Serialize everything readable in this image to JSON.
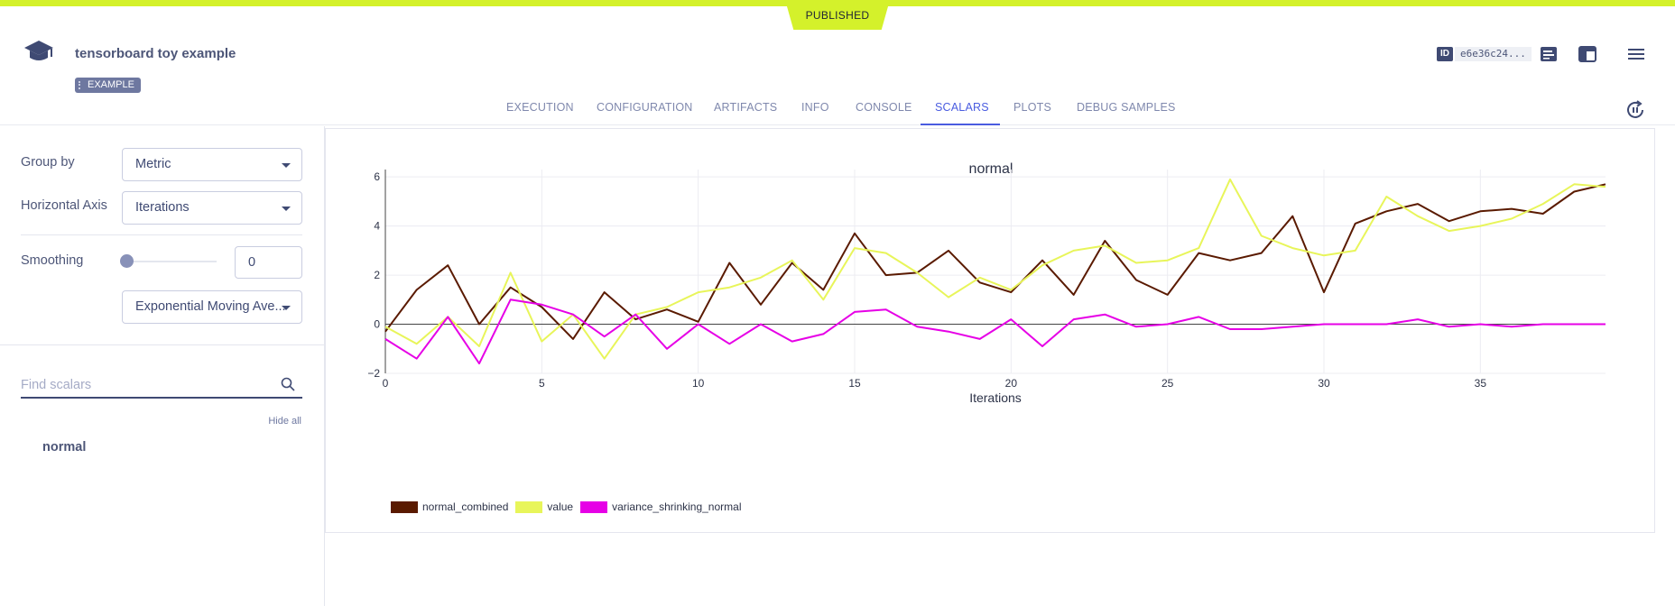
{
  "status_banner": "PUBLISHED",
  "task": {
    "title": "tensorboard toy example",
    "tag": "EXAMPLE",
    "id_label": "ID",
    "id_value": "e6e36c24..."
  },
  "tabs": [
    {
      "label": "EXECUTION",
      "active": false
    },
    {
      "label": "CONFIGURATION",
      "active": false
    },
    {
      "label": "ARTIFACTS",
      "active": false
    },
    {
      "label": "INFO",
      "active": false
    },
    {
      "label": "CONSOLE",
      "active": false
    },
    {
      "label": "SCALARS",
      "active": true
    },
    {
      "label": "PLOTS",
      "active": false
    },
    {
      "label": "DEBUG SAMPLES",
      "active": false
    }
  ],
  "sidebar": {
    "group_by_label": "Group by",
    "group_by_value": "Metric",
    "horizontal_axis_label": "Horizontal Axis",
    "horizontal_axis_value": "Iterations",
    "smoothing_label": "Smoothing",
    "smoothing_value": "0",
    "smoothing_method": "Exponential Moving Ave...",
    "search_placeholder": "Find scalars",
    "hide_all": "Hide all",
    "items": [
      "normal"
    ]
  },
  "colors": {
    "accent": "#4a5ce0",
    "banner": "#d4f12b"
  },
  "chart_data": {
    "type": "line",
    "title": "normal",
    "xlabel": "Iterations",
    "ylabel": "",
    "xlim": [
      0,
      39
    ],
    "ylim": [
      -2,
      6.3
    ],
    "xticks": [
      0,
      5,
      10,
      15,
      20,
      25,
      30,
      35
    ],
    "yticks": [
      -2,
      0,
      2,
      4,
      6
    ],
    "grid": true,
    "legend_position": "bottom-left",
    "x": [
      0,
      1,
      2,
      3,
      4,
      5,
      6,
      7,
      8,
      9,
      10,
      11,
      12,
      13,
      14,
      15,
      16,
      17,
      18,
      19,
      20,
      21,
      22,
      23,
      24,
      25,
      26,
      27,
      28,
      29,
      30,
      31,
      32,
      33,
      34,
      35,
      36,
      37,
      38,
      39
    ],
    "series": [
      {
        "name": "normal_combined",
        "color": "#5a1a00",
        "values": [
          -0.3,
          1.4,
          2.4,
          0.0,
          1.5,
          0.7,
          -0.6,
          1.3,
          0.2,
          0.6,
          0.1,
          2.5,
          0.8,
          2.5,
          1.4,
          3.7,
          2.0,
          2.1,
          3.0,
          1.7,
          1.3,
          2.6,
          1.2,
          3.4,
          1.8,
          1.2,
          2.9,
          2.6,
          2.9,
          4.4,
          1.3,
          4.1,
          4.6,
          4.9,
          4.2,
          4.6,
          4.7,
          4.5,
          5.4,
          5.7
        ]
      },
      {
        "name": "value",
        "color": "#e8f55a",
        "values": [
          -0.1,
          -0.8,
          0.3,
          -0.9,
          2.1,
          -0.7,
          0.4,
          -1.4,
          0.4,
          0.7,
          1.3,
          1.5,
          1.9,
          2.6,
          1.0,
          3.1,
          2.9,
          2.1,
          1.1,
          1.9,
          1.4,
          2.4,
          3.0,
          3.2,
          2.5,
          2.6,
          3.1,
          5.9,
          3.6,
          3.1,
          2.8,
          3.0,
          5.2,
          4.4,
          3.8,
          4.0,
          4.3,
          4.9,
          5.7,
          5.6
        ]
      },
      {
        "name": "variance_shrinking_normal",
        "color": "#e600e6",
        "values": [
          -0.6,
          -1.4,
          0.3,
          -1.6,
          1.0,
          0.8,
          0.4,
          -0.5,
          0.4,
          -1.0,
          0.0,
          -0.8,
          0.0,
          -0.7,
          -0.4,
          0.5,
          0.6,
          -0.1,
          -0.3,
          -0.6,
          0.2,
          -0.9,
          0.2,
          0.4,
          -0.1,
          0.0,
          0.3,
          -0.2,
          -0.2,
          -0.1,
          0.0,
          0.0,
          0.0,
          0.2,
          -0.1,
          0.0,
          -0.1,
          0.0,
          0.0,
          0.0
        ]
      }
    ]
  }
}
